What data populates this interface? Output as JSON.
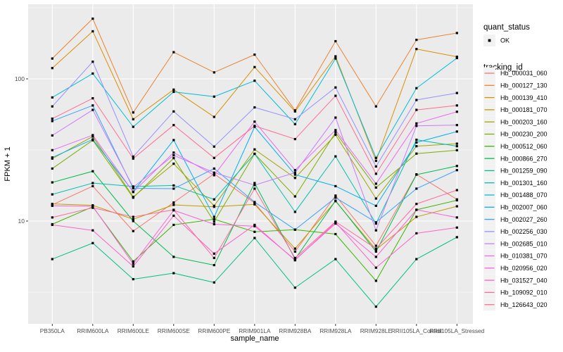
{
  "figure": {
    "bg": "#FFFFFF",
    "panel_bg": "#EBEBEB",
    "grid_color": "#FFFFFF",
    "axis_text_color": "#4D4D4D",
    "axis_title_color": "#000000",
    "point_color": "#000000",
    "legend_key_bg": "#F2F2F2"
  },
  "legend": {
    "quant_status_title": "quant_status",
    "ok_label": "OK",
    "tracking_id_title": "tracking_id"
  },
  "chart_data": {
    "type": "line",
    "title": "",
    "xlabel": "sample_name",
    "ylabel": "FPKM + 1",
    "y_scale": "log10",
    "y_ticks": [
      100,
      10
    ],
    "y_minor_ticks": [
      316.23,
      31.623,
      3.1623
    ],
    "ylim": [
      1.9,
      330
    ],
    "grid": "on",
    "legend_position": "right",
    "point_marker": "small black square (quant_status = OK)",
    "categories": [
      "PB350LA",
      "RRIM600LA",
      "RRIM600LE",
      "RRIM600SE",
      "RRIM600PE",
      "RRIM901LA",
      "RRIM928BA",
      "RRIM928LA",
      "RRIM928LE",
      "RRII105LA_Control",
      "RRII105LA_Stressed"
    ],
    "series": [
      {
        "name": "Hb_000031_060",
        "color": "#F8766D",
        "values": [
          13.0,
          17.6,
          8.5,
          13.5,
          21.5,
          13.4,
          6.1,
          15.1,
          6.7,
          21.3,
          14.2
        ]
      },
      {
        "name": "Hb_000127_130",
        "color": "#EA8331",
        "values": [
          139,
          265,
          58,
          154,
          111,
          148,
          60,
          184,
          64,
          188,
          210
        ]
      },
      {
        "name": "Hb_000139_410",
        "color": "#D89000",
        "values": [
          119,
          216,
          52,
          84,
          54,
          121,
          59,
          144,
          26.5,
          162,
          143
        ]
      },
      {
        "name": "Hb_000181_070",
        "color": "#C09B00",
        "values": [
          13.2,
          12.9,
          10.3,
          13.0,
          12.6,
          13.1,
          6.4,
          13.8,
          6.3,
          10.7,
          12.7
        ]
      },
      {
        "name": "Hb_000203_160",
        "color": "#A3A500",
        "values": [
          27.5,
          39.3,
          14.8,
          25.3,
          12.8,
          31.9,
          20.1,
          40.4,
          14.4,
          33.6,
          35.0
        ]
      },
      {
        "name": "Hb_000230_200",
        "color": "#7CAE00",
        "values": [
          23.4,
          37.0,
          14.6,
          27.7,
          9.9,
          29.7,
          14.9,
          42.0,
          17.2,
          29.8,
          31.5
        ]
      },
      {
        "name": "Hb_000512_060",
        "color": "#39B600",
        "values": [
          9.5,
          12.6,
          5.2,
          9.4,
          10.3,
          8.4,
          8.7,
          8.1,
          3.8,
          12.0,
          14.0
        ]
      },
      {
        "name": "Hb_000866_270",
        "color": "#00BB4E",
        "values": [
          18.7,
          22.4,
          10.0,
          5.6,
          4.9,
          18.5,
          5.4,
          13.9,
          6.1,
          21.2,
          24.4
        ]
      },
      {
        "name": "Hb_001259_090",
        "color": "#00C087",
        "values": [
          5.4,
          7.0,
          3.9,
          4.3,
          3.7,
          7.6,
          3.4,
          5.4,
          2.5,
          5.4,
          7.7
        ]
      },
      {
        "name": "Hb_001301_160",
        "color": "#00C0AF",
        "values": [
          15.4,
          18.5,
          17.5,
          17.8,
          14.2,
          29.7,
          11.6,
          28.5,
          9.6,
          37.3,
          33.6
        ]
      },
      {
        "name": "Hb_001488_070",
        "color": "#00BCD8",
        "values": [
          74,
          109,
          46,
          81,
          75,
          97,
          48,
          139,
          27.8,
          86,
          140
        ]
      },
      {
        "name": "Hb_002007_060",
        "color": "#00B0F6",
        "values": [
          28,
          37.5,
          16.1,
          37.1,
          10.7,
          46,
          21.2,
          17.6,
          12.8,
          35.7,
          42.6
        ]
      },
      {
        "name": "Hb_002027_260",
        "color": "#35A2FF",
        "values": [
          50.5,
          65,
          17.0,
          16.9,
          23.4,
          13.6,
          8.7,
          14.6,
          9.8,
          16.9,
          22.8
        ]
      },
      {
        "name": "Hb_002256_030",
        "color": "#9590FF",
        "values": [
          64,
          132,
          28.4,
          59,
          33.4,
          63,
          52,
          87,
          24.2,
          71,
          79.5
        ]
      },
      {
        "name": "Hb_002685_010",
        "color": "#C77CFF",
        "values": [
          40,
          60.5,
          17.3,
          29,
          21.9,
          17.9,
          21.9,
          53.4,
          8.6,
          46.7,
          47.3
        ]
      },
      {
        "name": "Hb_010381_070",
        "color": "#E76BF3",
        "values": [
          31.5,
          40.2,
          16.0,
          30.3,
          21.0,
          50,
          22.8,
          43.6,
          18.3,
          48.6,
          58.7
        ]
      },
      {
        "name": "Hb_020956_020",
        "color": "#FA62DB",
        "values": [
          12.8,
          12.7,
          5.0,
          11.9,
          9.5,
          9.2,
          5.35,
          9.6,
          5.6,
          12.0,
          10.6
        ]
      },
      {
        "name": "Hb_031527_040",
        "color": "#FF61C9",
        "values": [
          9.4,
          8.6,
          4.8,
          10.9,
          5.9,
          9.4,
          5.3,
          9.8,
          4.7,
          8.2,
          9.0
        ]
      },
      {
        "name": "Hb_109092_010",
        "color": "#FF689E",
        "values": [
          10.6,
          12.4,
          10.7,
          12.0,
          5.5,
          16.9,
          5.5,
          9.9,
          6.4,
          13.2,
          16.5
        ]
      },
      {
        "name": "Hb_126643_020",
        "color": "#FF6C92",
        "values": [
          52.5,
          73,
          27.5,
          47.3,
          27.8,
          46.7,
          37.7,
          76,
          21.5,
          60.5,
          65
        ]
      }
    ]
  }
}
